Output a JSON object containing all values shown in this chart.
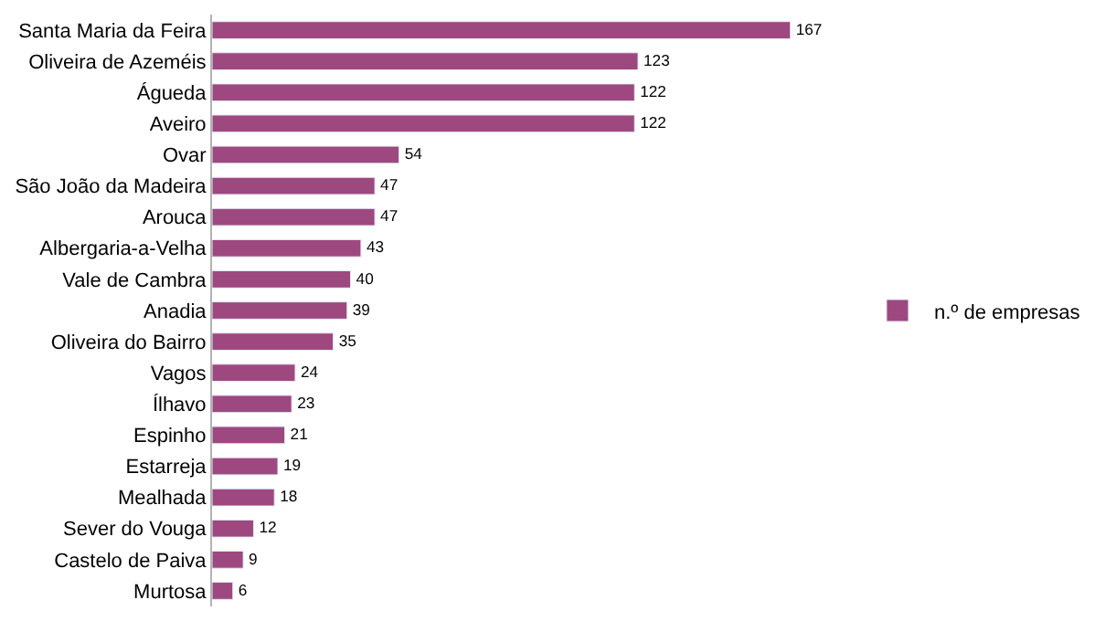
{
  "chart_data": {
    "type": "bar",
    "orientation": "horizontal",
    "categories": [
      "Santa Maria da Feira",
      "Oliveira de Azeméis",
      "Águeda",
      "Aveiro",
      "Ovar",
      "São João da Madeira",
      "Arouca",
      "Albergaria-a-Velha",
      "Vale de Cambra",
      "Anadia",
      "Oliveira do Bairro",
      "Vagos",
      "Ílhavo",
      "Espinho",
      "Estarreja",
      "Mealhada",
      "Sever do Vouga",
      "Castelo de Paiva",
      "Murtosa"
    ],
    "series": [
      {
        "name": "n.º de empresas",
        "color": "#9e4880",
        "values": [
          167,
          123,
          122,
          122,
          54,
          47,
          47,
          43,
          40,
          39,
          35,
          24,
          23,
          21,
          19,
          18,
          12,
          9,
          6
        ]
      }
    ],
    "data_labels": true,
    "legend": "right"
  }
}
